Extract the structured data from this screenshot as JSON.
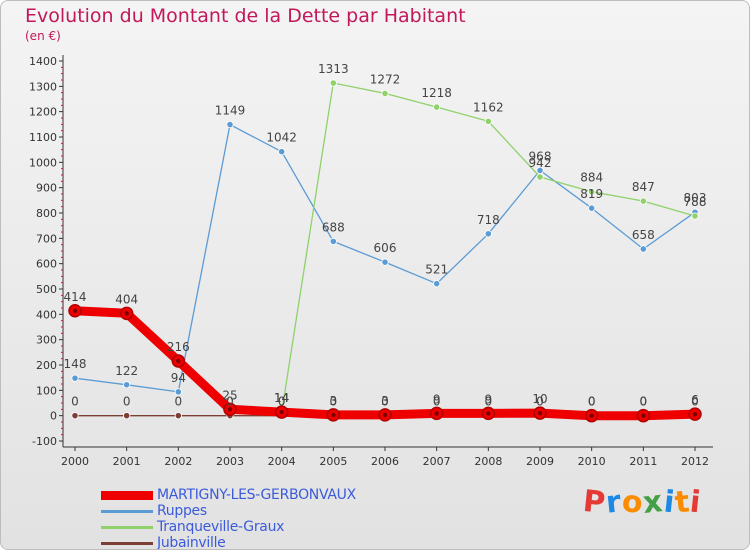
{
  "chart_data": {
    "type": "line",
    "title": "Evolution du Montant de la Dette par Habitant",
    "subtitle": "(en €)",
    "x": [
      "2000",
      "2001",
      "2002",
      "2003",
      "2004",
      "2005",
      "2006",
      "2007",
      "2008",
      "2009",
      "2010",
      "2011",
      "2012"
    ],
    "ylim": [
      -100,
      1400
    ],
    "yticks": [
      -100,
      0,
      100,
      200,
      300,
      400,
      500,
      600,
      700,
      800,
      900,
      1000,
      1100,
      1200,
      1300,
      1400
    ],
    "grid": false,
    "legend_position": "bottom-left",
    "series": [
      {
        "name": "Ruppes",
        "color": "#5b9bd5",
        "values": [
          148,
          122,
          94,
          1149,
          1042,
          688,
          606,
          521,
          718,
          968,
          819,
          658,
          803
        ],
        "labels": [
          "148",
          "122",
          "94",
          "1149",
          "1042",
          "688",
          "606",
          "521",
          "718",
          "968",
          "819",
          "658",
          "803"
        ]
      },
      {
        "name": "Tranqueville-Graux",
        "color": "#8fd16a",
        "values": [
          null,
          null,
          null,
          null,
          14,
          1313,
          1272,
          1218,
          1162,
          942,
          884,
          847,
          788
        ],
        "labels": [
          null,
          null,
          null,
          null,
          "14",
          "1313",
          "1272",
          "1218",
          "1162",
          "942",
          "884",
          "847",
          "788"
        ]
      },
      {
        "name": "Jubainville",
        "color": "#7b3f35",
        "values": [
          0,
          0,
          0,
          0,
          0,
          0,
          0,
          0,
          0,
          0,
          0,
          0,
          0
        ],
        "labels": [
          "0",
          "0",
          "0",
          "0",
          "0",
          "0",
          "0",
          "0",
          "0",
          "0",
          "0",
          "0",
          "0"
        ]
      },
      {
        "name": "MARTIGNY-LES-GERBONVAUX",
        "color": "#ee0000",
        "thick": true,
        "values": [
          414,
          404,
          216,
          25,
          14,
          3,
          3,
          9,
          9,
          10,
          0,
          0,
          6
        ],
        "labels": [
          "414",
          "404",
          "216",
          "25",
          "14",
          "3",
          "3",
          "9",
          "9",
          "10",
          "0",
          "0",
          "6"
        ]
      }
    ],
    "legend_order": [
      3,
      0,
      1,
      2
    ]
  },
  "branding": {
    "letters": [
      "P",
      "r",
      "o",
      "x",
      "i",
      "t",
      "i"
    ],
    "colors": [
      "#e53935",
      "#1e88e5",
      "#fb8c00",
      "#43a047",
      "#1e88e5",
      "#fb8c00",
      "#e53935"
    ]
  }
}
